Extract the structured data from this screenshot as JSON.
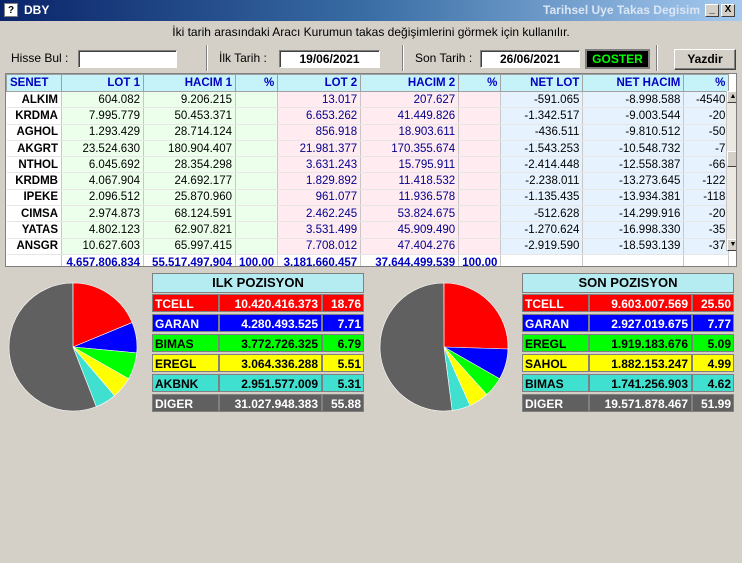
{
  "window": {
    "app_icon": "?",
    "title": "DBY",
    "right_title": "Tarihsel Uye Takas Degisim",
    "min_label": "_",
    "close_label": "X"
  },
  "info_text": "İki tarih arasındaki  Aracı Kurumun takas değişimlerini görmek için kullanılır.",
  "form": {
    "search_label": "Hisse Bul :",
    "search_value": "",
    "first_date_label": "İlk Tarih :",
    "first_date": "19/06/2021",
    "last_date_label": "Son Tarih :",
    "last_date": "26/06/2021",
    "show_button": "GOSTER",
    "print_button": "Yazdir"
  },
  "grid": {
    "headers": [
      "SENET",
      "LOT 1",
      "HACIM 1",
      "%",
      "LOT 2",
      "HACIM 2",
      "%",
      "NET LOT",
      "NET HACIM",
      "%"
    ],
    "rows": [
      [
        "ALKIM",
        "604.082",
        "9.206.215",
        "",
        "13.017",
        "207.627",
        "",
        "-591.065",
        "-8.998.588",
        "-4540"
      ],
      [
        "KRDMA",
        "7.995.779",
        "50.453.371",
        "",
        "6.653.262",
        "41.449.826",
        "",
        "-1.342.517",
        "-9.003.544",
        "-20"
      ],
      [
        "AGHOL",
        "1.293.429",
        "28.714.124",
        "",
        "856.918",
        "18.903.611",
        "",
        "-436.511",
        "-9.810.512",
        "-50"
      ],
      [
        "AKGRT",
        "23.524.630",
        "180.904.407",
        "",
        "21.981.377",
        "170.355.674",
        "",
        "-1.543.253",
        "-10.548.732",
        "-7"
      ],
      [
        "NTHOL",
        "6.045.692",
        "28.354.298",
        "",
        "3.631.243",
        "15.795.911",
        "",
        "-2.414.448",
        "-12.558.387",
        "-66"
      ],
      [
        "KRDMB",
        "4.067.904",
        "24.692.177",
        "",
        "1.829.892",
        "11.418.532",
        "",
        "-2.238.011",
        "-13.273.645",
        "-122"
      ],
      [
        "IPEKE",
        "2.096.512",
        "25.870.960",
        "",
        "961.077",
        "11.936.578",
        "",
        "-1.135.435",
        "-13.934.381",
        "-118"
      ],
      [
        "CIMSA",
        "2.974.873",
        "68.124.591",
        "",
        "2.462.245",
        "53.824.675",
        "",
        "-512.628",
        "-14.299.916",
        "-20"
      ],
      [
        "YATAS",
        "4.802.123",
        "62.907.821",
        "",
        "3.531.499",
        "45.909.490",
        "",
        "-1.270.624",
        "-16.998.330",
        "-35"
      ],
      [
        "ANSGR",
        "10.627.603",
        "65.997.415",
        "",
        "7.708.012",
        "47.404.276",
        "",
        "-2.919.590",
        "-18.593.139",
        "-37"
      ]
    ],
    "totals": [
      "",
      "4.657.806.834",
      "55.517.497.904",
      "100,00",
      "3.181.660.457",
      "37.644.499.539",
      "100,00",
      "",
      "",
      ""
    ]
  },
  "ilk_pozisyon": {
    "title": "ILK POZISYON",
    "rows": [
      {
        "name": "TCELL",
        "value": "10.420.416.373",
        "pct": "18.76",
        "pct_num": 18.76,
        "bg": "#ff0000",
        "fg": "#ffffff"
      },
      {
        "name": "GARAN",
        "value": "4.280.493.525",
        "pct": "7.71",
        "pct_num": 7.71,
        "bg": "#0000ff",
        "fg": "#ffffff"
      },
      {
        "name": "BIMAS",
        "value": "3.772.726.325",
        "pct": "6.79",
        "pct_num": 6.79,
        "bg": "#00ff00",
        "fg": "#000000"
      },
      {
        "name": "EREGL",
        "value": "3.064.336.288",
        "pct": "5.51",
        "pct_num": 5.51,
        "bg": "#ffff00",
        "fg": "#000000"
      },
      {
        "name": "AKBNK",
        "value": "2.951.577.009",
        "pct": "5.31",
        "pct_num": 5.31,
        "bg": "#40e0d0",
        "fg": "#000000"
      },
      {
        "name": "DIGER",
        "value": "31.027.948.383",
        "pct": "55.88",
        "pct_num": 55.88,
        "bg": "#606060",
        "fg": "#ffffff"
      }
    ]
  },
  "son_pozisyon": {
    "title": "SON POZISYON",
    "rows": [
      {
        "name": "TCELL",
        "value": "9.603.007.569",
        "pct": "25.50",
        "pct_num": 25.5,
        "bg": "#ff0000",
        "fg": "#ffffff"
      },
      {
        "name": "GARAN",
        "value": "2.927.019.675",
        "pct": "7.77",
        "pct_num": 7.77,
        "bg": "#0000ff",
        "fg": "#ffffff"
      },
      {
        "name": "EREGL",
        "value": "1.919.183.676",
        "pct": "5.09",
        "pct_num": 5.09,
        "bg": "#00ff00",
        "fg": "#000000"
      },
      {
        "name": "SAHOL",
        "value": "1.882.153.247",
        "pct": "4.99",
        "pct_num": 4.99,
        "bg": "#ffff00",
        "fg": "#000000"
      },
      {
        "name": "BIMAS",
        "value": "1.741.256.903",
        "pct": "4.62",
        "pct_num": 4.62,
        "bg": "#40e0d0",
        "fg": "#000000"
      },
      {
        "name": "DIGER",
        "value": "19.571.878.467",
        "pct": "51.99",
        "pct_num": 51.99,
        "bg": "#606060",
        "fg": "#ffffff"
      }
    ]
  }
}
